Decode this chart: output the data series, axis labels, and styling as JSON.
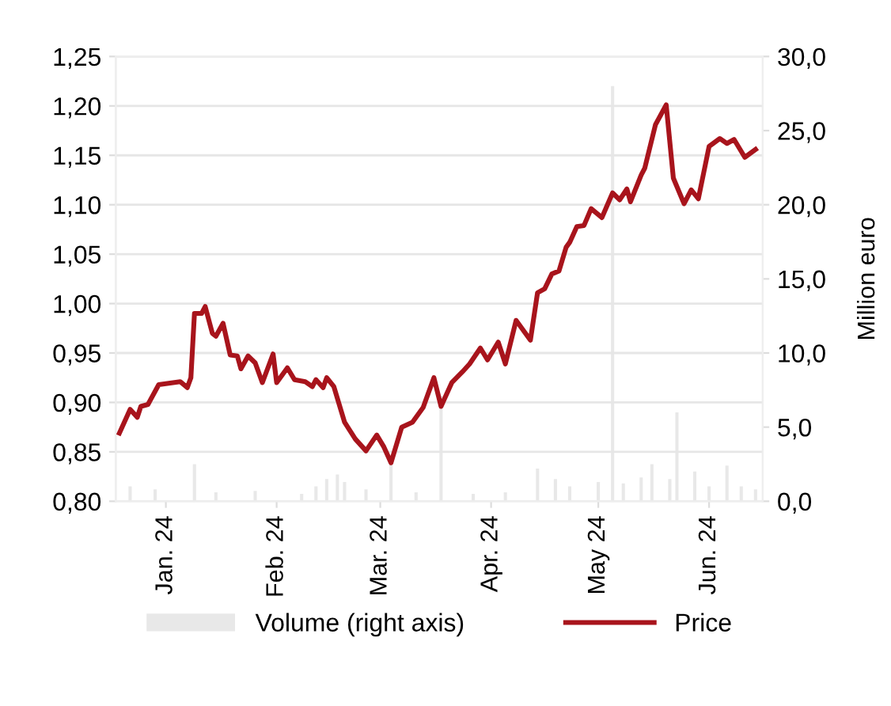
{
  "chart_data": {
    "type": "line",
    "y2label": "Million euro",
    "xlim": [
      "2024-01-01",
      "2024-06-30"
    ],
    "xticks": [
      {
        "value": "2024-01-15",
        "label": "Jan. 24"
      },
      {
        "value": "2024-02-15",
        "label": "Feb. 24"
      },
      {
        "value": "2024-03-15",
        "label": "Mar. 24"
      },
      {
        "value": "2024-04-15",
        "label": "Apr. 24"
      },
      {
        "value": "2024-05-15",
        "label": "May 24"
      },
      {
        "value": "2024-06-15",
        "label": "Jun. 24"
      }
    ],
    "ylim": [
      0.8,
      1.25
    ],
    "yticks": [
      {
        "value": 0.8,
        "label": "0,80"
      },
      {
        "value": 0.85,
        "label": "0,85"
      },
      {
        "value": 0.9,
        "label": "0,90"
      },
      {
        "value": 0.95,
        "label": "0,95"
      },
      {
        "value": 1.0,
        "label": "1,00"
      },
      {
        "value": 1.05,
        "label": "1,05"
      },
      {
        "value": 1.1,
        "label": "1,10"
      },
      {
        "value": 1.15,
        "label": "1,15"
      },
      {
        "value": 1.2,
        "label": "1,20"
      },
      {
        "value": 1.25,
        "label": "1,25"
      }
    ],
    "y2lim": [
      0,
      30
    ],
    "y2ticks": [
      {
        "value": 0,
        "label": "0,0"
      },
      {
        "value": 5,
        "label": "5,0"
      },
      {
        "value": 10,
        "label": "10,0"
      },
      {
        "value": 15,
        "label": "15,0"
      },
      {
        "value": 20,
        "label": "20,0"
      },
      {
        "value": 25,
        "label": "25,0"
      },
      {
        "value": 30,
        "label": "30,0"
      }
    ],
    "grid": "y",
    "legend": "bottom",
    "series": [
      {
        "name": "Volume (right axis)",
        "type": "bar",
        "axis": "y2",
        "color": "#e8e8e8",
        "x": [
          "2024-01-05",
          "2024-01-12",
          "2024-01-23",
          "2024-01-29",
          "2024-02-09",
          "2024-02-22",
          "2024-02-26",
          "2024-02-29",
          "2024-03-03",
          "2024-03-05",
          "2024-03-11",
          "2024-03-18",
          "2024-03-25",
          "2024-04-01",
          "2024-04-10",
          "2024-04-19",
          "2024-04-28",
          "2024-05-03",
          "2024-05-07",
          "2024-05-15",
          "2024-05-19",
          "2024-05-22",
          "2024-05-27",
          "2024-05-30",
          "2024-06-04",
          "2024-06-06",
          "2024-06-11",
          "2024-06-15",
          "2024-06-20",
          "2024-06-24",
          "2024-06-28"
        ],
        "values": [
          1.0,
          0.8,
          2.5,
          0.6,
          0.7,
          0.5,
          1.0,
          1.5,
          1.8,
          1.3,
          0.8,
          2.6,
          0.6,
          7.1,
          0.5,
          0.6,
          2.2,
          1.5,
          1.0,
          1.3,
          28.0,
          1.2,
          1.6,
          2.5,
          1.5,
          6.0,
          2.0,
          1.0,
          2.4,
          1.0,
          0.8
        ]
      },
      {
        "name": "Price",
        "color": "#a8141c",
        "line_style": "solid",
        "x": [
          "2024-01-02",
          "2024-01-05",
          "2024-01-07",
          "2024-01-08",
          "2024-01-10",
          "2024-01-13",
          "2024-01-19",
          "2024-01-21",
          "2024-01-22",
          "2024-01-23",
          "2024-01-25",
          "2024-01-26",
          "2024-01-28",
          "2024-01-29",
          "2024-01-31",
          "2024-02-02",
          "2024-02-04",
          "2024-02-05",
          "2024-02-07",
          "2024-02-09",
          "2024-02-11",
          "2024-02-14",
          "2024-02-15",
          "2024-02-18",
          "2024-02-20",
          "2024-02-23",
          "2024-02-25",
          "2024-02-26",
          "2024-02-28",
          "2024-02-29",
          "2024-03-02",
          "2024-03-05",
          "2024-03-08",
          "2024-03-11",
          "2024-03-14",
          "2024-03-16",
          "2024-03-18",
          "2024-03-21",
          "2024-03-24",
          "2024-03-27",
          "2024-03-30",
          "2024-04-01",
          "2024-04-04",
          "2024-04-07",
          "2024-04-09",
          "2024-04-12",
          "2024-04-14",
          "2024-04-17",
          "2024-04-19",
          "2024-04-22",
          "2024-04-26",
          "2024-04-28",
          "2024-04-30",
          "2024-05-02",
          "2024-05-04",
          "2024-05-06",
          "2024-05-07",
          "2024-05-09",
          "2024-05-11",
          "2024-05-13",
          "2024-05-16",
          "2024-05-19",
          "2024-05-21",
          "2024-05-23",
          "2024-05-24",
          "2024-05-27",
          "2024-05-28",
          "2024-05-31",
          "2024-06-03",
          "2024-06-05",
          "2024-06-08",
          "2024-06-10",
          "2024-06-12",
          "2024-06-15",
          "2024-06-18",
          "2024-06-20",
          "2024-06-22",
          "2024-06-25",
          "2024-06-28"
        ],
        "values": [
          0.869,
          0.893,
          0.885,
          0.896,
          0.898,
          0.918,
          0.921,
          0.915,
          0.925,
          0.99,
          0.99,
          0.997,
          0.97,
          0.967,
          0.98,
          0.948,
          0.947,
          0.934,
          0.947,
          0.94,
          0.92,
          0.949,
          0.92,
          0.935,
          0.923,
          0.921,
          0.916,
          0.923,
          0.915,
          0.925,
          0.916,
          0.88,
          0.863,
          0.851,
          0.867,
          0.855,
          0.839,
          0.875,
          0.88,
          0.895,
          0.925,
          0.896,
          0.92,
          0.931,
          0.939,
          0.955,
          0.943,
          0.961,
          0.939,
          0.983,
          0.963,
          1.011,
          1.015,
          1.03,
          1.033,
          1.057,
          1.062,
          1.078,
          1.079,
          1.096,
          1.087,
          1.112,
          1.105,
          1.116,
          1.103,
          1.13,
          1.137,
          1.181,
          1.201,
          1.127,
          1.101,
          1.115,
          1.106,
          1.159,
          1.167,
          1.162,
          1.166,
          1.148,
          1.156
        ]
      }
    ]
  }
}
